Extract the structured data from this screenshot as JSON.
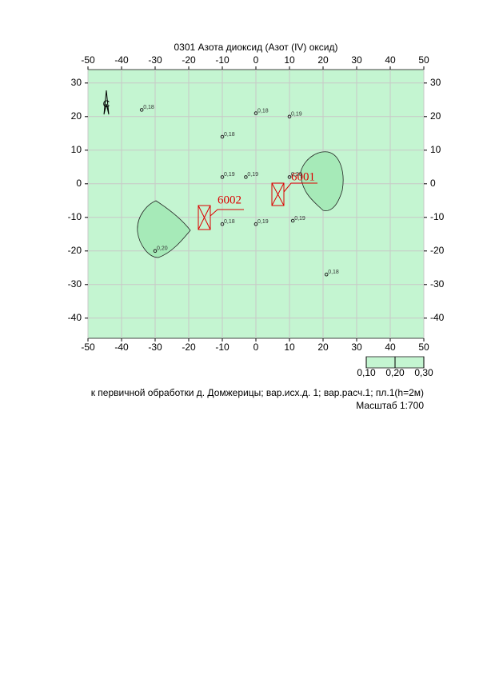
{
  "chart_data": {
    "type": "scatter",
    "title": "0301 Азота диоксид (Азот (IV) оксид)",
    "xlim": [
      -50,
      50
    ],
    "ylim": [
      -46,
      34
    ],
    "xticks": [
      -50,
      -40,
      -30,
      -20,
      -10,
      0,
      10,
      20,
      30,
      40,
      50
    ],
    "yticks": [
      -40,
      -30,
      -20,
      -10,
      0,
      10,
      20,
      30
    ],
    "grid": true,
    "background_color": "#c4f5d1",
    "compass_label": "С",
    "series": [
      {
        "name": "Расчетные точки",
        "color": "#222",
        "x": [
          -34,
          0,
          10,
          -10,
          -10,
          -3,
          10,
          -10,
          0,
          11,
          -30,
          21
        ],
        "values": [
          22,
          21,
          20,
          14,
          2,
          2,
          2,
          -12,
          -12,
          -11,
          -20,
          -27
        ],
        "point_values": [
          0.18,
          0.18,
          0.19,
          0.18,
          0.19,
          0.19,
          0.2,
          0.18,
          0.19,
          0.19,
          0.2,
          0.18
        ],
        "value_labels": [
          "0,18",
          "0,18",
          "0,19",
          "0,18",
          "0,19",
          "0,19",
          "0,20",
          "0,18",
          "0,19",
          "0,19",
          "0,20",
          "0,18"
        ]
      }
    ],
    "sources": [
      "6001",
      "6002"
    ],
    "legend_ticks": [
      {
        "value": 0.1,
        "label": "0,10"
      },
      {
        "value": 0.2,
        "label": "0,20"
      },
      {
        "value": 0.3,
        "label": "0,30"
      }
    ],
    "footer": "к первичной обработки д. Домжерицы; вар.исх.д. 1; вар.расч.1; пл.1(h=2м)",
    "scale_label": "Масштаб 1:700"
  }
}
